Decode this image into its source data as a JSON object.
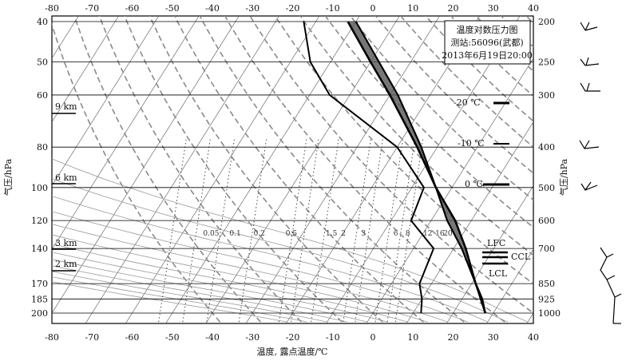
{
  "chart_data": {
    "type": "skew-t",
    "title": "温度对数压力图",
    "station_label": "测站:56096(武都)",
    "datetime": "2013年6月19日20:00",
    "xlabel": "温度, 露点温度/℃",
    "ylabel_left": "气压/hPa",
    "ylabel_right": "气压/hPa",
    "x_ticks": [
      -80,
      -70,
      -60,
      -50,
      -40,
      -30,
      -20,
      -10,
      0,
      10,
      20,
      30,
      40
    ],
    "xlim": [
      -80,
      40
    ],
    "left_ticks": [
      "40",
      "50",
      "60",
      "80",
      "100",
      "120",
      "140",
      "170",
      "185",
      "200"
    ],
    "right_ticks": [
      "200",
      "250",
      "300",
      "400",
      "500",
      "600",
      "700",
      "850",
      "925",
      "1000"
    ],
    "height_labels": [
      "9 km",
      "6 km",
      "3 km",
      "2 km"
    ],
    "mixing_ratio_labels": [
      "0.05",
      "0.1",
      "0.2",
      "0.5",
      "1.5",
      "2",
      "3",
      "6",
      "8",
      "12",
      "16",
      "20"
    ],
    "isotherm_markers": [
      "-20 ℃",
      "-10 ℃",
      "0 ℃"
    ],
    "level_labels": [
      "LFC",
      "CCL",
      "LCL"
    ],
    "temperature_profile": [
      {
        "p": 1000,
        "t": 28
      },
      {
        "p": 925,
        "t": 25
      },
      {
        "p": 850,
        "t": 21
      },
      {
        "p": 700,
        "t": 13
      },
      {
        "p": 600,
        "t": 6
      },
      {
        "p": 500,
        "t": -4
      },
      {
        "p": 400,
        "t": -15
      },
      {
        "p": 300,
        "t": -30
      },
      {
        "p": 250,
        "t": -40
      },
      {
        "p": 200,
        "t": -52
      }
    ],
    "dewpoint_profile": [
      {
        "p": 1000,
        "t": 12
      },
      {
        "p": 925,
        "t": 10
      },
      {
        "p": 850,
        "t": 7
      },
      {
        "p": 700,
        "t": 5
      },
      {
        "p": 600,
        "t": -5
      },
      {
        "p": 500,
        "t": -7
      },
      {
        "p": 400,
        "t": -20
      },
      {
        "p": 300,
        "t": -45
      },
      {
        "p": 250,
        "t": -55
      },
      {
        "p": 200,
        "t": -63
      }
    ],
    "parcel_profile": [
      {
        "p": 1000,
        "t": 28
      },
      {
        "p": 850,
        "t": 21
      },
      {
        "p": 700,
        "t": 12
      },
      {
        "p": 600,
        "t": 4
      },
      {
        "p": 500,
        "t": -4
      },
      {
        "p": 400,
        "t": -14
      },
      {
        "p": 300,
        "t": -28
      },
      {
        "p": 200,
        "t": -50
      }
    ],
    "grid": true
  }
}
